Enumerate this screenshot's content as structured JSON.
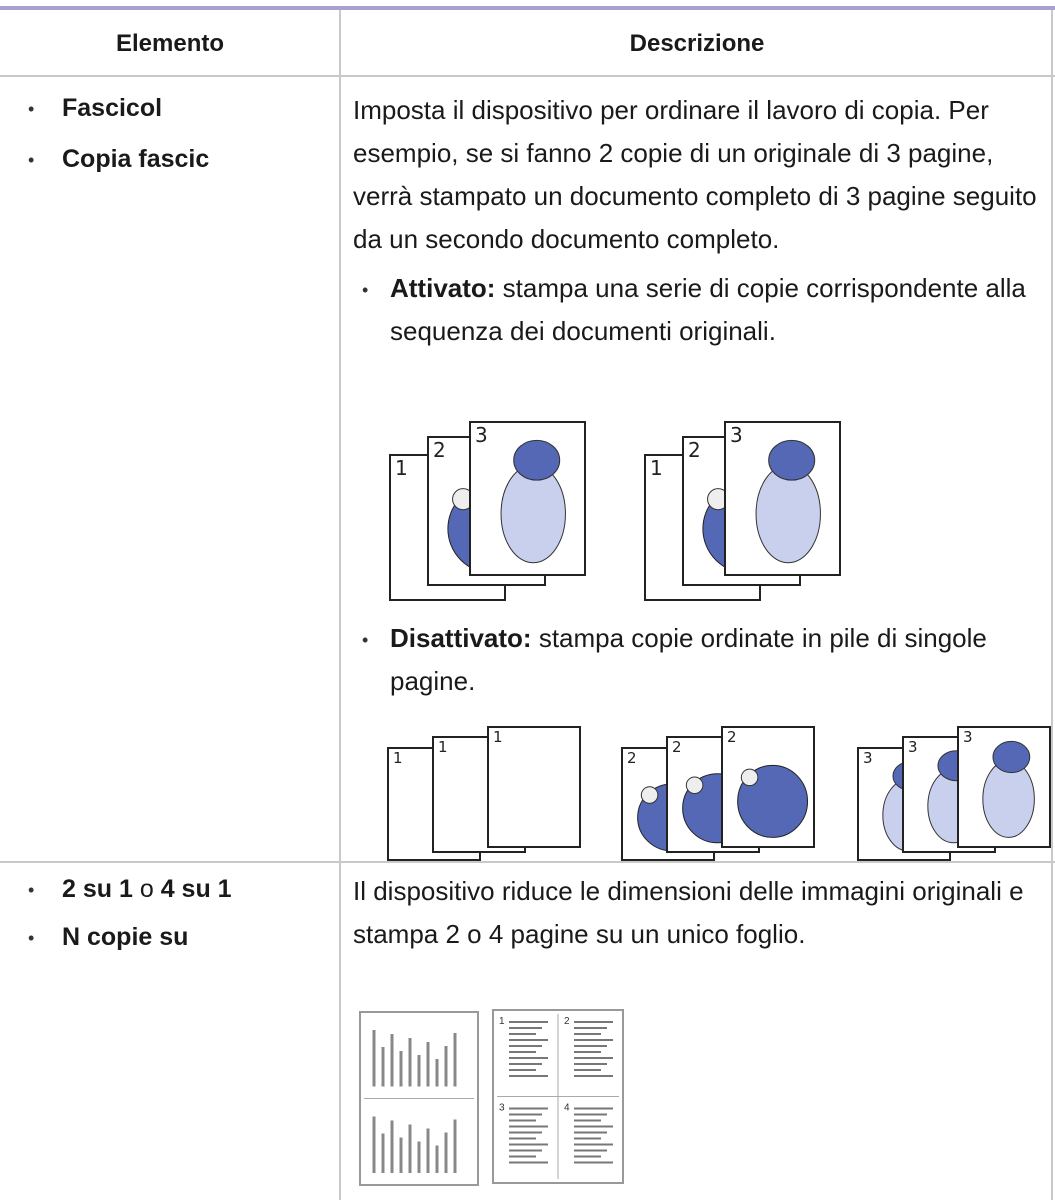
{
  "table": {
    "headers": [
      "Elemento",
      "Descrizione"
    ],
    "rows": [
      {
        "items": [
          "Fascicol",
          "Copia fascic"
        ],
        "description": "Imposta il dispositivo per ordinare il lavoro di copia. Per esempio, se si fanno 2 copie di un originale di 3 pagine, verrà stampato un documento completo di 3 pagine seguito da un secondo documento completo.",
        "options": [
          {
            "term": "Attivato:",
            "text": "stampa una serie di copie corrispondente alla sequenza dei documenti originali."
          },
          {
            "term": "Disattivato:",
            "text": "stampa copie ordinate in pile di singole pagine."
          }
        ]
      },
      {
        "items": [
          [
            "2 su 1",
            "o",
            "4 su 1"
          ],
          "N copie su"
        ],
        "description": "Il dispositivo riduce le dimensioni delle immagini originali e stampa 2 o 4 pagine su un unico foglio."
      }
    ]
  },
  "page_numbers": [
    "1",
    "2",
    "3",
    "4"
  ]
}
